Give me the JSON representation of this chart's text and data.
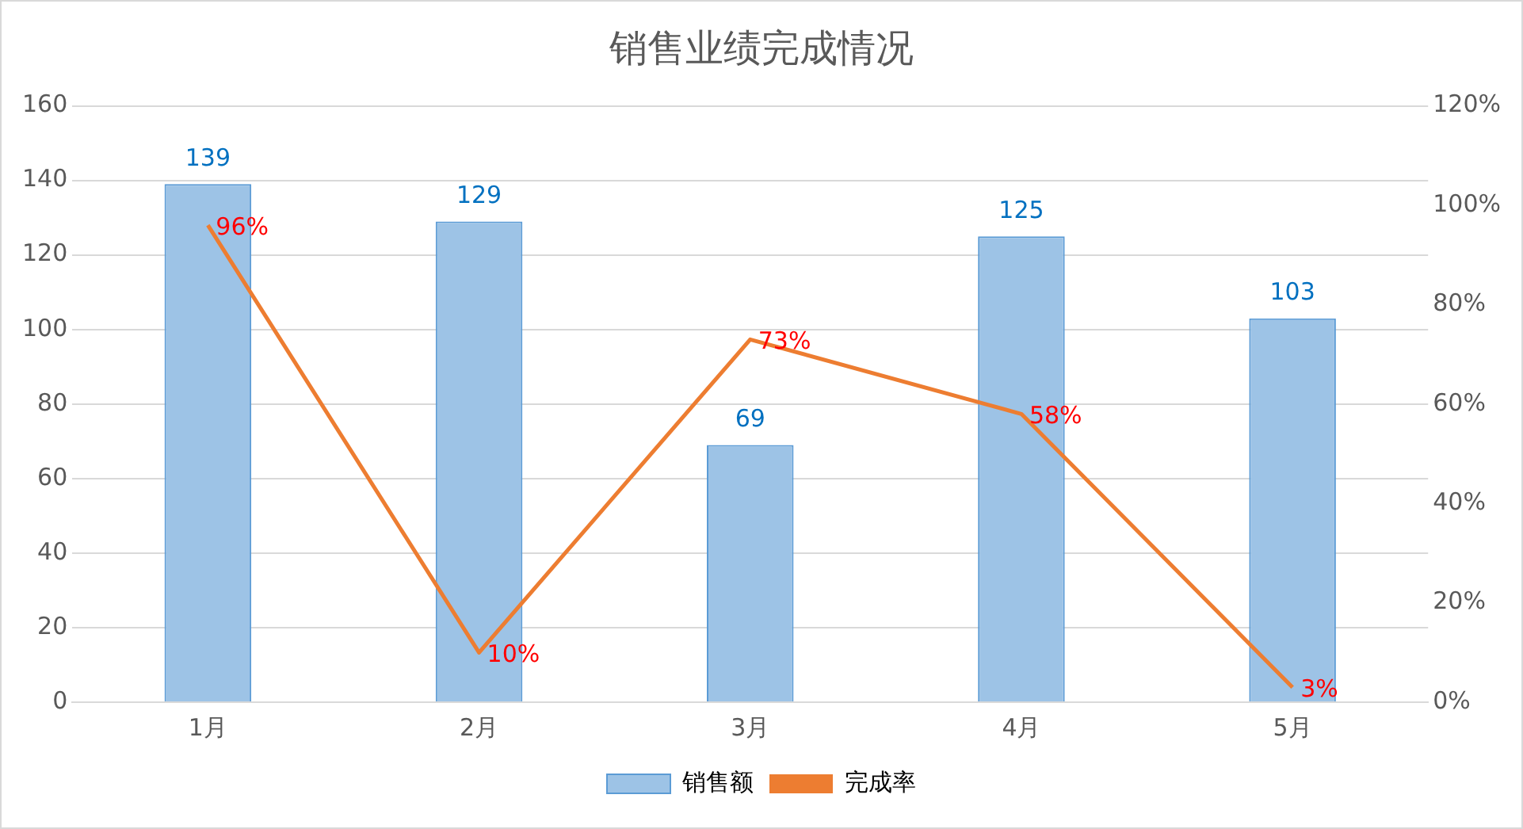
{
  "chart_data": {
    "type": "bar",
    "title": "销售业绩完成情况",
    "categories": [
      "1月",
      "2月",
      "3月",
      "4月",
      "5月"
    ],
    "series": [
      {
        "name": "销售额",
        "color": "#9dc3e6",
        "values": [
          139,
          129,
          69,
          125,
          103
        ],
        "value_labels": [
          "139",
          "129",
          "69",
          "125",
          "103"
        ]
      },
      {
        "name": "完成率",
        "type": "line",
        "axis": "y2",
        "color": "#ed7d31",
        "values": [
          96,
          10,
          73,
          58,
          3
        ],
        "value_labels": [
          "96%",
          "10%",
          "73%",
          "58%",
          "3%"
        ]
      }
    ],
    "ylim": [
      0,
      160
    ],
    "yticks": [
      0,
      20,
      40,
      60,
      80,
      100,
      120,
      140,
      160
    ],
    "y2lim": [
      0,
      120
    ],
    "y2ticks": [
      {
        "value": 0,
        "label": "0%"
      },
      {
        "value": 20,
        "label": "20%"
      },
      {
        "value": 40,
        "label": "40%"
      },
      {
        "value": 60,
        "label": "60%"
      },
      {
        "value": 80,
        "label": "80%"
      },
      {
        "value": 100,
        "label": "100%"
      },
      {
        "value": 120,
        "label": "120%"
      }
    ],
    "grid": "y",
    "legend": "bottom",
    "marker": "none"
  }
}
